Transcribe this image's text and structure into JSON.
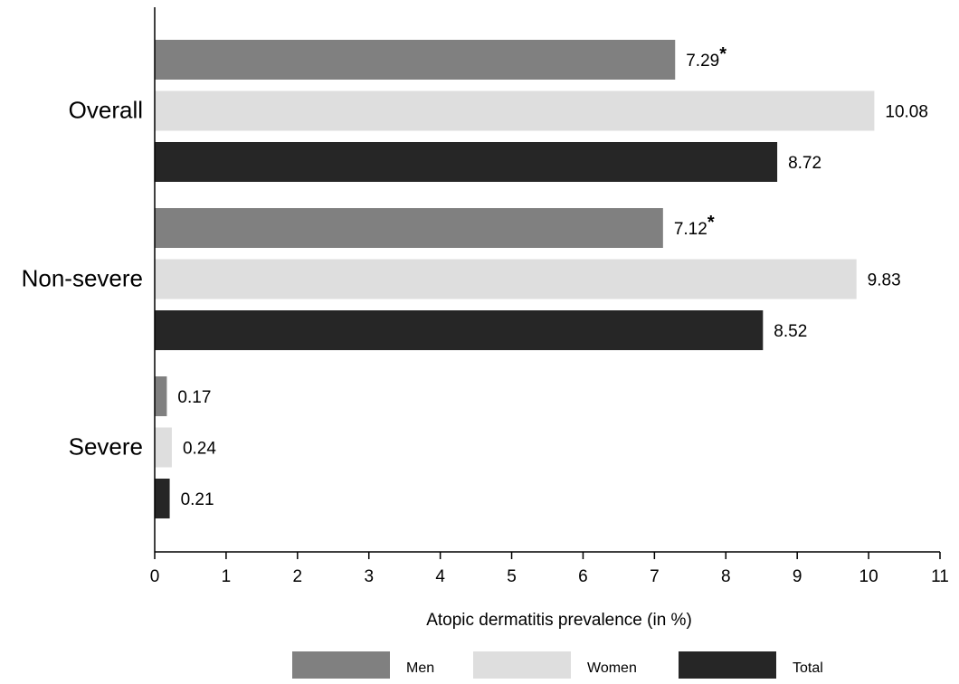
{
  "chart_data": {
    "type": "bar",
    "orientation": "horizontal",
    "categories": [
      "Overall",
      "Non-severe",
      "Severe"
    ],
    "series": [
      {
        "name": "Men",
        "color": "#808080",
        "values": [
          7.29,
          7.12,
          0.17
        ],
        "labels": [
          "7.29",
          "7.12",
          "0.17"
        ],
        "markers": [
          "*",
          "*",
          ""
        ]
      },
      {
        "name": "Women",
        "color": "#dedede",
        "values": [
          10.08,
          9.83,
          0.24
        ],
        "labels": [
          "10.08",
          "9.83",
          "0.24"
        ],
        "markers": [
          "",
          "",
          ""
        ]
      },
      {
        "name": "Total",
        "color": "#262626",
        "values": [
          8.72,
          8.52,
          0.21
        ],
        "labels": [
          "8.72",
          "8.52",
          "0.21"
        ],
        "markers": [
          "",
          "",
          ""
        ]
      }
    ],
    "xlabel": "Atopic dermatitis prevalence (in %)",
    "xlim": [
      0,
      11
    ],
    "xticks": [
      0,
      1,
      2,
      3,
      4,
      5,
      6,
      7,
      8,
      9,
      10,
      11
    ],
    "grid": false,
    "legend_position": "bottom"
  }
}
